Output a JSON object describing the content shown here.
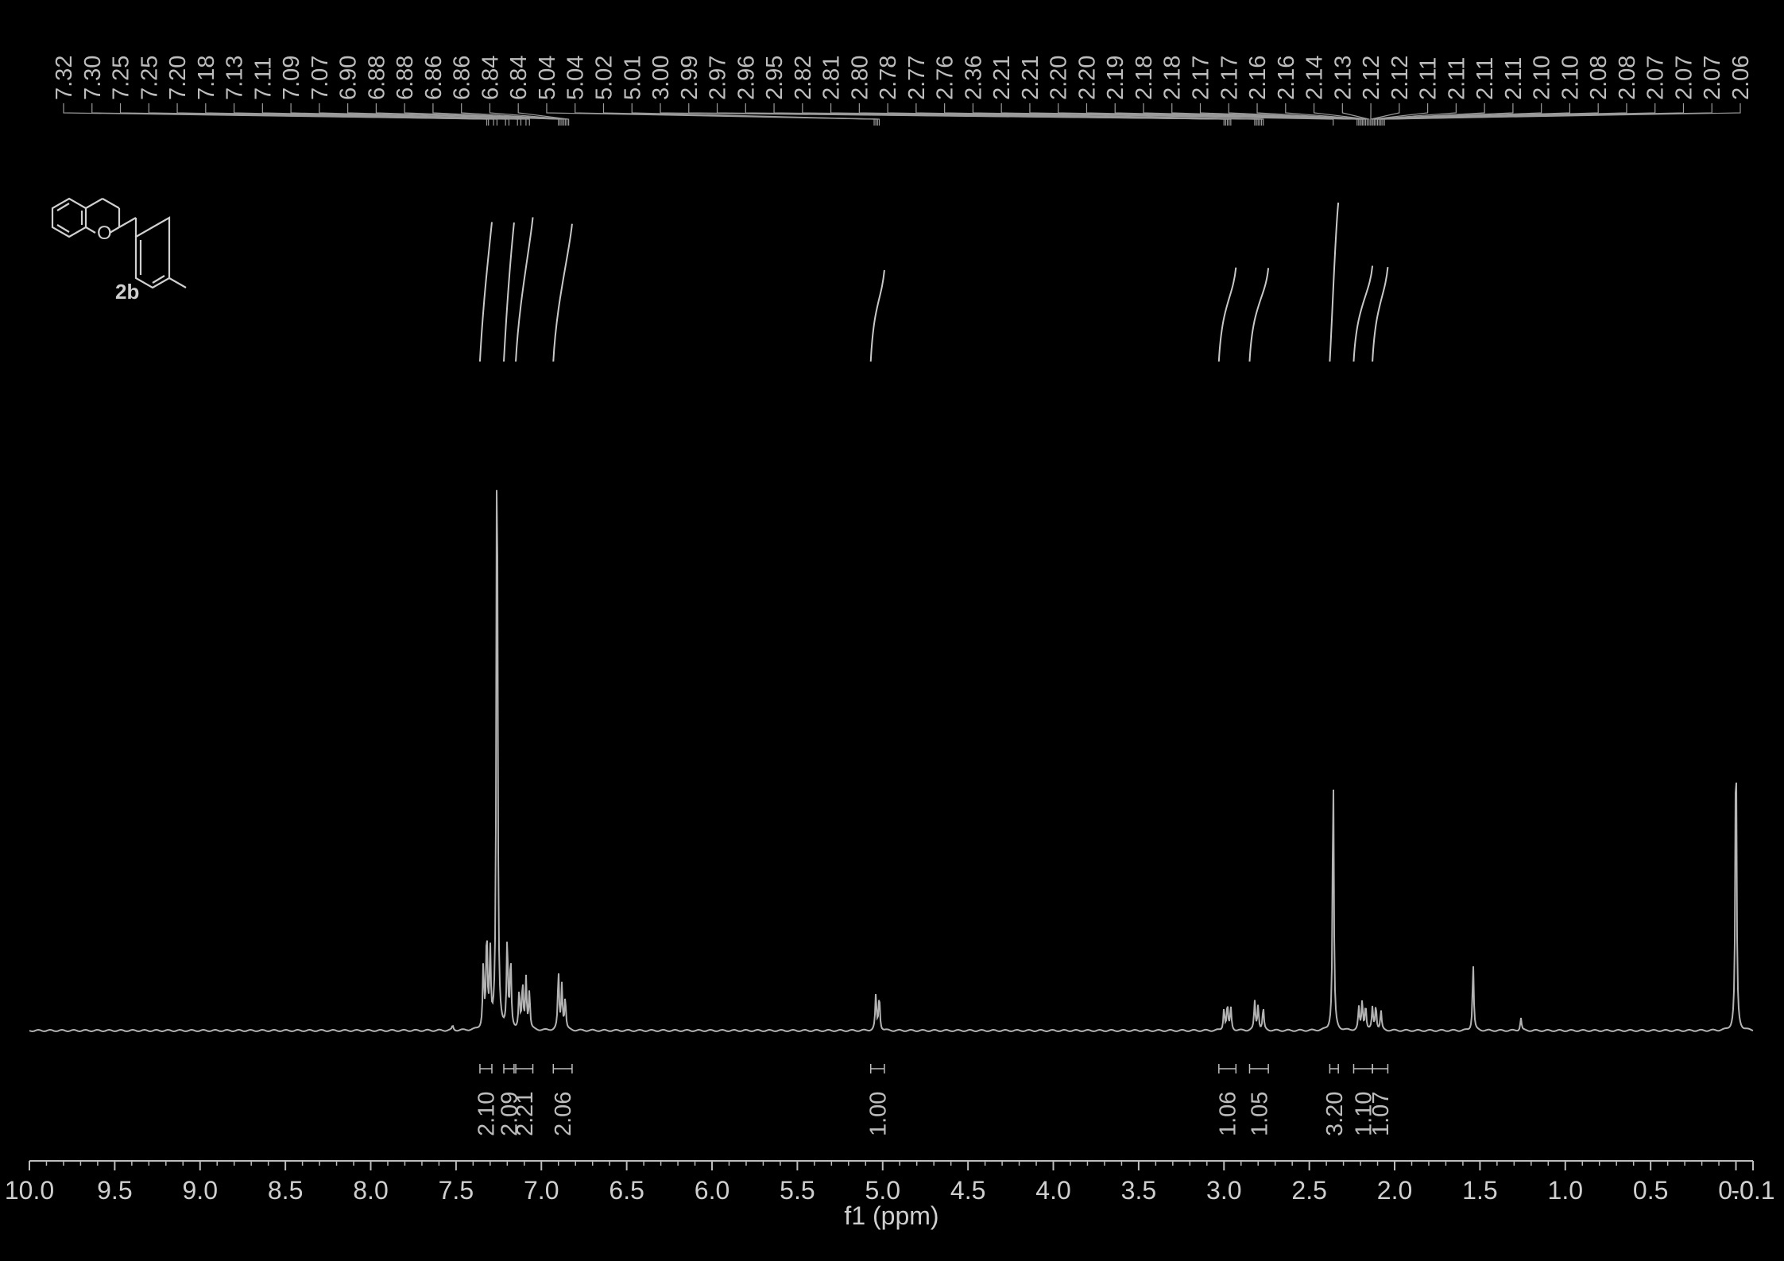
{
  "chart_data": {
    "type": "line",
    "xlabel": "f1 (ppm)",
    "xlim": [
      10.0,
      -0.1
    ],
    "x_reversed": true,
    "x_ticks": [
      "10.0",
      "9.5",
      "9.0",
      "8.5",
      "8.0",
      "7.5",
      "7.0",
      "6.5",
      "6.0",
      "5.5",
      "5.0",
      "4.5",
      "4.0",
      "3.5",
      "3.0",
      "2.5",
      "2.0",
      "1.5",
      "1.0",
      "0.5",
      "0.0",
      "-0.1"
    ],
    "x_tick_values": [
      10.0,
      9.5,
      9.0,
      8.5,
      8.0,
      7.5,
      7.0,
      6.5,
      6.0,
      5.5,
      5.0,
      4.5,
      4.0,
      3.5,
      3.0,
      2.5,
      2.0,
      1.5,
      1.0,
      0.5,
      0.0,
      -0.1
    ],
    "compound_label": "2b",
    "peak_labels": [
      "7.32",
      "7.30",
      "7.25",
      "7.25",
      "7.20",
      "7.18",
      "7.13",
      "7.11",
      "7.09",
      "7.07",
      "6.90",
      "6.88",
      "6.88",
      "6.86",
      "6.86",
      "6.84",
      "6.84",
      "5.04",
      "5.04",
      "5.02",
      "5.01",
      "3.00",
      "2.99",
      "2.97",
      "2.96",
      "2.95",
      "2.82",
      "2.81",
      "2.80",
      "2.78",
      "2.77",
      "2.76",
      "2.36",
      "2.21",
      "2.21",
      "2.20",
      "2.20",
      "2.19",
      "2.18",
      "2.18",
      "2.17",
      "2.17",
      "2.16",
      "2.16",
      "2.14",
      "2.13",
      "2.12",
      "2.12",
      "2.11",
      "2.11",
      "2.11",
      "2.11",
      "2.10",
      "2.10",
      "2.08",
      "2.08",
      "2.07",
      "2.07",
      "2.07",
      "2.06"
    ],
    "peak_positions_ppm": [
      7.32,
      7.31,
      7.28,
      7.26,
      7.21,
      7.19,
      7.14,
      7.12,
      7.09,
      7.07,
      6.9,
      6.89,
      6.88,
      6.87,
      6.86,
      6.85,
      6.84,
      5.05,
      5.04,
      5.03,
      5.02,
      3.0,
      2.99,
      2.98,
      2.97,
      2.96,
      2.82,
      2.81,
      2.8,
      2.79,
      2.78,
      2.77,
      2.36,
      2.22,
      2.21,
      2.21,
      2.2,
      2.2,
      2.19,
      2.19,
      2.18,
      2.18,
      2.17,
      2.17,
      2.16,
      2.15,
      2.14,
      2.14,
      2.13,
      2.13,
      2.12,
      2.12,
      2.11,
      2.1,
      2.1,
      2.09,
      2.08,
      2.08,
      2.07,
      2.06
    ],
    "integrals": [
      {
        "label": "2.10",
        "from": 7.36,
        "to": 7.29,
        "area": 2.1
      },
      {
        "label": "2.09",
        "from": 7.22,
        "to": 7.16,
        "area": 2.09
      },
      {
        "label": "2.21",
        "from": 7.15,
        "to": 7.05,
        "area": 2.21
      },
      {
        "label": "2.06",
        "from": 6.93,
        "to": 6.82,
        "area": 2.06
      },
      {
        "label": "1.00",
        "from": 5.07,
        "to": 4.99,
        "area": 1.0
      },
      {
        "label": "1.06",
        "from": 3.03,
        "to": 2.93,
        "area": 1.06
      },
      {
        "label": "1.05",
        "from": 2.85,
        "to": 2.74,
        "area": 1.05
      },
      {
        "label": "3.20",
        "from": 2.38,
        "to": 2.33,
        "area": 3.2
      },
      {
        "label": "1.10",
        "from": 2.24,
        "to": 2.13,
        "area": 1.1
      },
      {
        "label": "1.07",
        "from": 2.13,
        "to": 2.04,
        "area": 1.07
      }
    ],
    "series": [
      {
        "peaks": [
          {
            "ppm": 7.52,
            "height": 0.007
          },
          {
            "ppm": 7.34,
            "height": 0.1
          },
          {
            "ppm": 7.32,
            "height": 0.15
          },
          {
            "ppm": 7.3,
            "height": 0.12
          },
          {
            "ppm": 7.26,
            "height": 1.0
          },
          {
            "ppm": 7.2,
            "height": 0.14
          },
          {
            "ppm": 7.18,
            "height": 0.11
          },
          {
            "ppm": 7.13,
            "height": 0.06
          },
          {
            "ppm": 7.11,
            "height": 0.07
          },
          {
            "ppm": 7.09,
            "height": 0.08
          },
          {
            "ppm": 7.07,
            "height": 0.06
          },
          {
            "ppm": 6.9,
            "height": 0.09
          },
          {
            "ppm": 6.88,
            "height": 0.07
          },
          {
            "ppm": 6.86,
            "height": 0.05
          },
          {
            "ppm": 5.04,
            "height": 0.055
          },
          {
            "ppm": 5.02,
            "height": 0.055
          },
          {
            "ppm": 3.0,
            "height": 0.035
          },
          {
            "ppm": 2.98,
            "height": 0.04
          },
          {
            "ppm": 2.96,
            "height": 0.035
          },
          {
            "ppm": 2.82,
            "height": 0.045
          },
          {
            "ppm": 2.8,
            "height": 0.04
          },
          {
            "ppm": 2.77,
            "height": 0.035
          },
          {
            "ppm": 2.36,
            "height": 0.41
          },
          {
            "ppm": 2.21,
            "height": 0.035
          },
          {
            "ppm": 2.19,
            "height": 0.045
          },
          {
            "ppm": 2.17,
            "height": 0.04
          },
          {
            "ppm": 2.13,
            "height": 0.035
          },
          {
            "ppm": 2.11,
            "height": 0.04
          },
          {
            "ppm": 2.08,
            "height": 0.03
          },
          {
            "ppm": 1.54,
            "height": 0.105
          },
          {
            "ppm": 1.26,
            "height": 0.02
          },
          {
            "ppm": 0.0,
            "height": 0.48
          }
        ]
      }
    ],
    "grid": false,
    "colors": {
      "background": "#000000",
      "spectrum": "#b3b3b3",
      "axis": "#bdbdbd",
      "text": "#cfcfcf"
    }
  }
}
